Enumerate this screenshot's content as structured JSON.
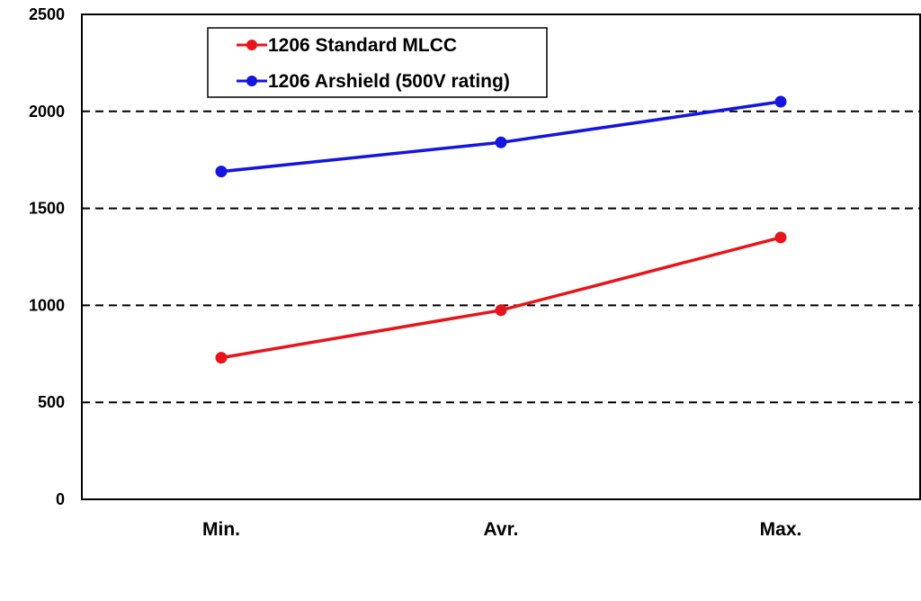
{
  "chart_data": {
    "type": "line",
    "categories": [
      "Min.",
      "Avr.",
      "Max."
    ],
    "series": [
      {
        "name": "1206 Standard MLCC",
        "color": "#e8141b",
        "values": [
          730,
          975,
          1350
        ]
      },
      {
        "name": "1206 Arshield (500V rating)",
        "color": "#1515e0",
        "values": [
          1690,
          1840,
          2050
        ]
      }
    ],
    "ylim": [
      0,
      2500
    ],
    "yticks": [
      0,
      500,
      1000,
      1500,
      2000,
      2500
    ],
    "grid": "dashed horizontal",
    "legend_position": "top-left"
  }
}
